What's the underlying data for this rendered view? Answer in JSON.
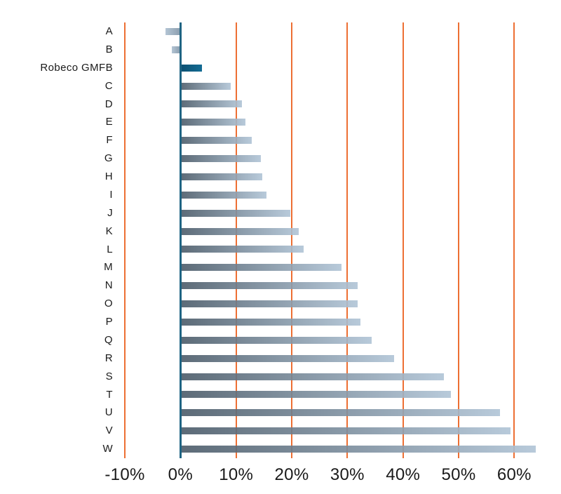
{
  "chart_data": {
    "type": "bar",
    "orientation": "horizontal",
    "title": "",
    "xlabel": "",
    "ylabel": "",
    "legend": "none",
    "grid": "vertical gridlines every 10%, orange; zero axis dark blue",
    "xlim": [
      -10,
      65
    ],
    "categories": [
      "A",
      "B",
      "Robeco GMFB",
      "C",
      "D",
      "E",
      "F",
      "G",
      "H",
      "I",
      "J",
      "K",
      "L",
      "M",
      "N",
      "O",
      "P",
      "Q",
      "R",
      "S",
      "T",
      "U",
      "V",
      "W"
    ],
    "values": [
      -2.7,
      -1.6,
      3.9,
      9,
      11,
      11.7,
      12.8,
      14.4,
      14.7,
      15.4,
      19.8,
      21.2,
      22.2,
      28.9,
      31.8,
      31.8,
      32.3,
      34.4,
      38.4,
      47.4,
      48.6,
      57.5,
      59.3,
      63.9
    ],
    "highlight_category": "Robeco GMFB",
    "x_ticks": [
      "-10%",
      "0%",
      "10%",
      "20%",
      "30%",
      "40%",
      "50%",
      "60%"
    ],
    "x_tick_values": [
      -10,
      0,
      10,
      20,
      30,
      40,
      50,
      60
    ],
    "colors": {
      "bar_gradient_start": "#4a5a68",
      "bar_gradient_end": "#b0c4d6",
      "highlight_gradient_start": "#0d4f70",
      "highlight_gradient_end": "#136c94",
      "negative_gradient_start": "#b0c2d2",
      "negative_gradient_end": "#8599ab",
      "gridline": "#ED6F33",
      "zero_axis": "#1f6483",
      "text": "#1a1a1a"
    }
  }
}
